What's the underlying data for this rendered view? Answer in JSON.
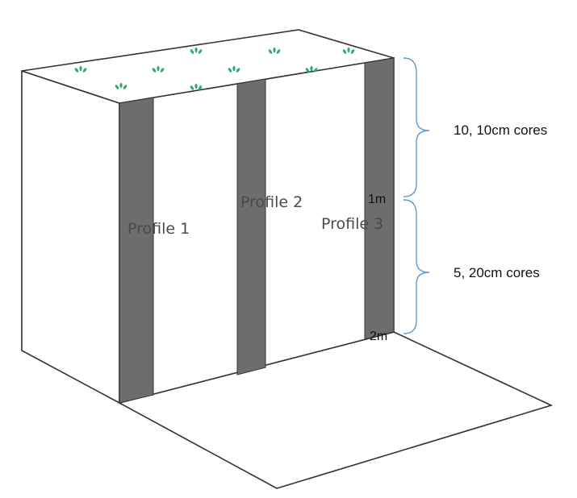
{
  "profiles": [
    {
      "label": "Profile 1"
    },
    {
      "label": "Profile 2"
    },
    {
      "label": "Profile 3"
    }
  ],
  "depth_marks": {
    "mid": "1m",
    "bottom": "2m"
  },
  "core_groups": {
    "upper": "10, 10cm cores",
    "lower": "5, 20cm cores"
  },
  "colors": {
    "outline": "#333333",
    "profile_strip": "#6d6d70",
    "bracket": "#5b9bd5",
    "vegetation": "#2eaa6e",
    "face": "#ffffff"
  },
  "icons": {
    "vegetation": "plant-sprout-icon"
  }
}
